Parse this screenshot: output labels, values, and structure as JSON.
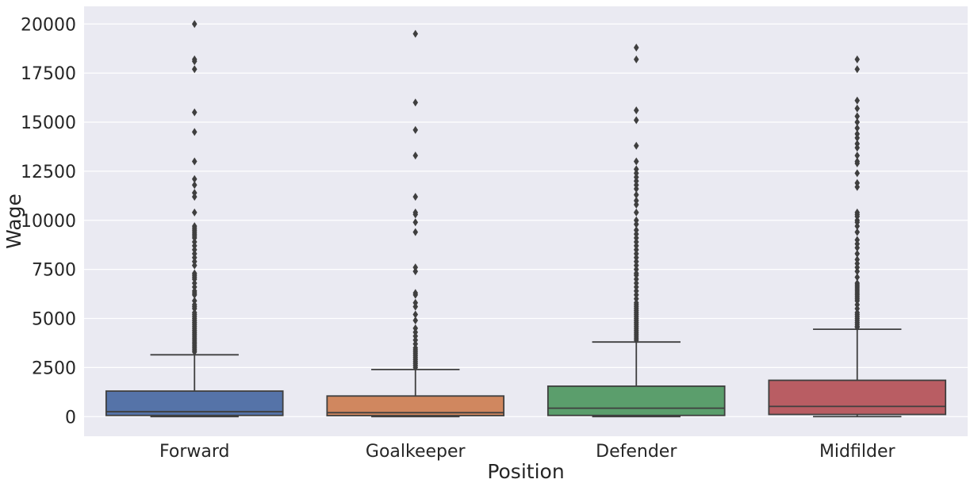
{
  "chart_data": {
    "type": "box",
    "xlabel": "Position",
    "ylabel": "Wage",
    "ylim": [
      -1000,
      20900
    ],
    "yticks": [
      0,
      2500,
      5000,
      7500,
      10000,
      12500,
      15000,
      17500,
      20000
    ],
    "ytick_labels": [
      "0",
      "2500",
      "5000",
      "7500",
      "10000",
      "12500",
      "15000",
      "17500",
      "20000"
    ],
    "grid": true,
    "categories": [
      "Forward",
      "Goalkeeper",
      "Defender",
      "Midfilder"
    ],
    "colors": [
      "#5573a8",
      "#d0875f",
      "#5b9e6c",
      "#b95d63"
    ],
    "background": "#eaeaf2",
    "edge_color": "#3f3f3f",
    "boxes": [
      {
        "category": "Forward",
        "whisker_low": 0,
        "q1": 60,
        "median": 250,
        "q3": 1300,
        "whisker_high": 3150,
        "outliers": [
          20000,
          18200,
          18100,
          17700,
          15500,
          14500,
          13000,
          12100,
          11800,
          11400,
          11200,
          10400,
          9700,
          9600,
          9500,
          9400,
          9300,
          9200,
          9100,
          8900,
          8700,
          8500,
          8300,
          8100,
          7900,
          7700,
          7300,
          7200,
          7100,
          7000,
          6800,
          6600,
          6400,
          6300,
          6200,
          5900,
          5700,
          5600,
          5500,
          5300,
          5200,
          5100,
          5000,
          4900,
          4800,
          4700,
          4600,
          4500,
          4400,
          4300,
          4200,
          4100,
          4000,
          3900,
          3800,
          3700,
          3600,
          3500,
          3400,
          3300
        ]
      },
      {
        "category": "Goalkeeper",
        "whisker_low": 0,
        "q1": 50,
        "median": 200,
        "q3": 1050,
        "whisker_high": 2400,
        "outliers": [
          19500,
          16000,
          14600,
          13300,
          11200,
          10400,
          10300,
          9900,
          9400,
          7600,
          7400,
          6300,
          6200,
          5800,
          5600,
          5200,
          4900,
          4500,
          4300,
          4100,
          3900,
          3700,
          3500,
          3400,
          3300,
          3200,
          3100,
          3000,
          2900,
          2800,
          2700,
          2600,
          2500
        ]
      },
      {
        "category": "Defender",
        "whisker_low": 0,
        "q1": 60,
        "median": 430,
        "q3": 1550,
        "whisker_high": 3800,
        "outliers": [
          18800,
          18200,
          15600,
          15100,
          13800,
          13000,
          12600,
          12400,
          12200,
          12000,
          11800,
          11600,
          11300,
          11000,
          10800,
          10400,
          10000,
          9800,
          9500,
          9300,
          9100,
          8900,
          8700,
          8500,
          8300,
          8100,
          7900,
          7700,
          7500,
          7300,
          7200,
          7000,
          6800,
          6600,
          6400,
          6200,
          6000,
          5800,
          5700,
          5600,
          5500,
          5400,
          5300,
          5200,
          5100,
          5000,
          4900,
          4800,
          4700,
          4600,
          4500,
          4400,
          4300,
          4200,
          4100,
          4000,
          3900
        ]
      },
      {
        "category": "Midfilder",
        "whisker_low": 0,
        "q1": 110,
        "median": 520,
        "q3": 1850,
        "whisker_high": 4450,
        "outliers": [
          18200,
          17700,
          16100,
          15700,
          15300,
          15000,
          14700,
          14400,
          14200,
          13900,
          13700,
          13300,
          13000,
          12900,
          12400,
          11900,
          11700,
          10400,
          10300,
          10200,
          10000,
          9900,
          9700,
          9400,
          9000,
          8800,
          8600,
          8300,
          8000,
          7800,
          7600,
          7400,
          7100,
          6800,
          6700,
          6600,
          6500,
          6400,
          6300,
          6200,
          6100,
          6000,
          5900,
          5700,
          5500,
          5300,
          5200,
          5100,
          5000,
          4900,
          4800,
          4700,
          4600,
          4550
        ]
      }
    ]
  }
}
